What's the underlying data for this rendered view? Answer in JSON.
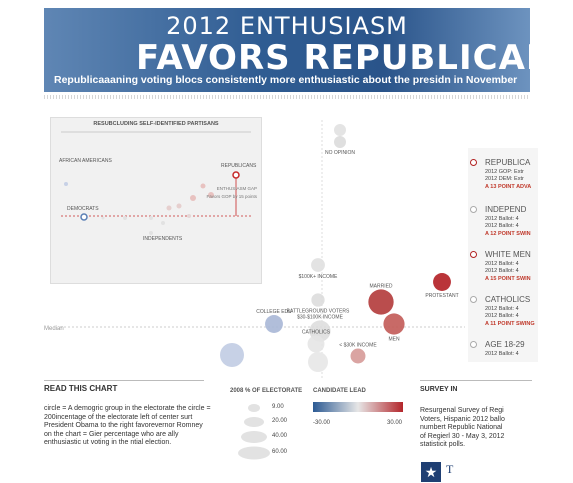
{
  "header": {
    "line1": "2012 ENTHUSIASM",
    "line2": "FAVORS REPUBLICAN",
    "subtitle": "Republicaaaning voting blocs consistently more enthusiastic about the presidn in November"
  },
  "inset": {
    "title": "RESUBCLUDING SELF-IDENTIFIED PARTISANS",
    "labels": {
      "african_americans": "AFRICAN AMERICANS",
      "republicans": "REPUBLICANS",
      "democrats": "DEMOCRATS",
      "independents": "INDEPENDENTS",
      "gap_title": "ENTHUSIASM GAP",
      "gap_text": "Favors GOP by 15 points"
    }
  },
  "chart_data": {
    "type": "scatter",
    "axis_label": "Median",
    "points": [
      {
        "label": "NO OPINION",
        "size": 9,
        "lead": 0,
        "color": "#dcdcdc"
      },
      {
        "label": "$100K+ INCOME",
        "size": 12,
        "lead": 0,
        "color": "#e0e0e0"
      },
      {
        "label": "MARRIED",
        "size": 40,
        "lead": 22,
        "color": "#b23a3a"
      },
      {
        "label": "PROTESTANT",
        "size": 20,
        "lead": 30,
        "color": "#b31e24"
      },
      {
        "label": "COLLEGE EDU",
        "size": 20,
        "lead": -12,
        "color": "#a8b7d6"
      },
      {
        "label": "BATTLEGROUND VOTERS",
        "size": 11,
        "lead": 0,
        "color": "#dddddd"
      },
      {
        "label": "$30-$100K INCOME",
        "size": 28,
        "lead": 3,
        "color": "#dedede"
      },
      {
        "label": "MEN",
        "size": 28,
        "lead": 18,
        "color": "#c25a56"
      },
      {
        "label": "CATHOLICS",
        "size": 18,
        "lead": 0,
        "color": "#e6e6e6"
      },
      {
        "label": "< $30K INCOME",
        "size": 14,
        "lead": 7,
        "color": "#d69a98"
      }
    ]
  },
  "side": [
    {
      "name": "REPUBLICA",
      "ring": "red",
      "lines": [
        "2012 GOP: Extr",
        "2012 DEM: Extr"
      ],
      "lead": "A 13 POINT ADVA"
    },
    {
      "name": "INDEPEND",
      "ring": "grey",
      "lines": [
        "2012 Ballot: 4",
        "2012 Ballot: 4"
      ],
      "lead": "A 12 POINT SWIN"
    },
    {
      "name": "WHITE MEN",
      "ring": "red",
      "lines": [
        "2012 Ballot: 4",
        "2012 Ballot: 4"
      ],
      "lead": "A 15 POINT SWIN"
    },
    {
      "name": "CATHOLICS",
      "ring": "grey",
      "lines": [
        "2012 Ballot: 4",
        "2012 Ballot: 4"
      ],
      "lead": "A 11 POINT SWING"
    },
    {
      "name": "AGE 18-29",
      "ring": "grey",
      "lines": [
        "2012 Ballot: 4",
        "2012 Ballot: 4"
      ],
      "lead": ""
    }
  ],
  "legend": {
    "read_title": "READ THIS CHART",
    "read_text": "circle = A demogric group in the electorate the circle = 200incentage of the electorate left of center surt President Obama to the right favorevernor Romney on the chart = Gier percentage who are ally enthusiastic ut voting in the ntial election.",
    "electorate_title": "2008 % OF ELECTORATE",
    "electorate_values": [
      "9.00",
      "20.00",
      "40.00",
      "60.00"
    ],
    "lead_title": "CANDIDATE LEAD",
    "lead_min": "-30.00",
    "lead_max": "30.00",
    "survey_title": "SURVEY IN",
    "survey_text": "Resurgenal Survey of Regi\nVoters, Hispanic 2012 ballo\nnumbert Republic National\nof Regierl 30 - May 3, 2012\nstatisticit polls.",
    "logo_letter": "T"
  }
}
